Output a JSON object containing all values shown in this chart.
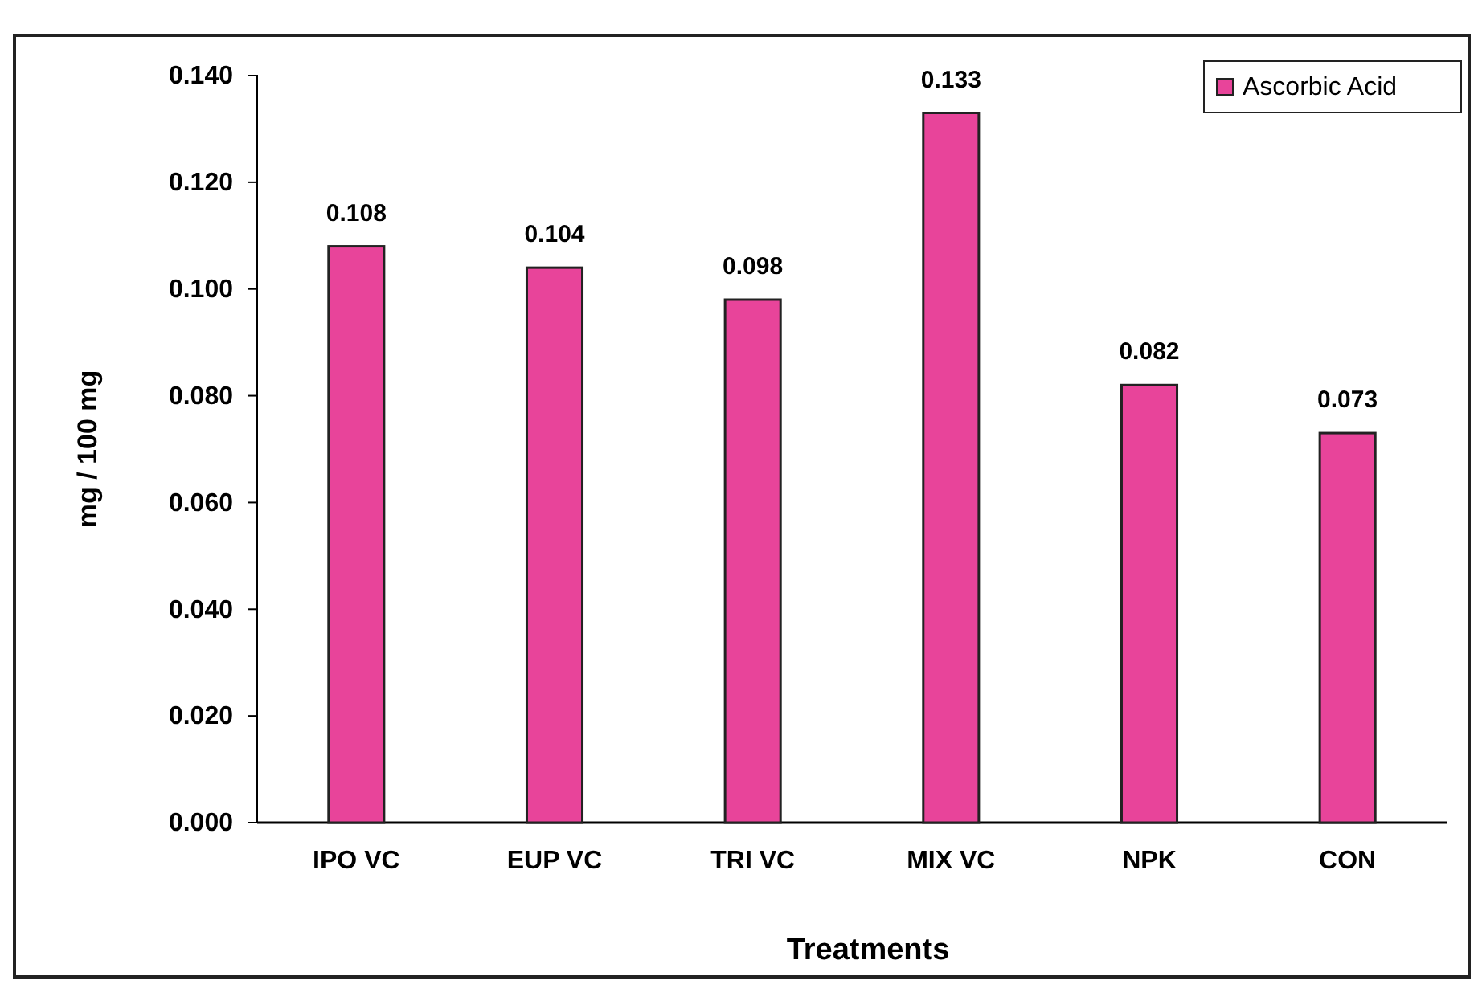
{
  "chart_data": {
    "type": "bar",
    "xlabel": "Treatments",
    "ylabel": "mg / 100 mg",
    "categories": [
      "IPO VC",
      "EUP VC",
      "TRI VC",
      "MIX VC",
      "NPK",
      "CON"
    ],
    "series": [
      {
        "name": "Ascorbic Acid",
        "color": "#e8449a",
        "values": [
          0.108,
          0.104,
          0.098,
          0.133,
          0.082,
          0.073
        ]
      }
    ],
    "ylim": [
      0,
      0.14
    ],
    "yticks": [
      {
        "value": 0,
        "label": "0.000"
      },
      {
        "value": 0.02,
        "label": "0.020"
      },
      {
        "value": 0.04,
        "label": "0.040"
      },
      {
        "value": 0.06,
        "label": "0.060"
      },
      {
        "value": 0.08,
        "label": "0.080"
      },
      {
        "value": 0.1,
        "label": "0.100"
      },
      {
        "value": 0.12,
        "label": "0.120"
      },
      {
        "value": 0.14,
        "label": "0.140"
      }
    ],
    "data_labels": true,
    "legend": "top right",
    "grid": false
  }
}
